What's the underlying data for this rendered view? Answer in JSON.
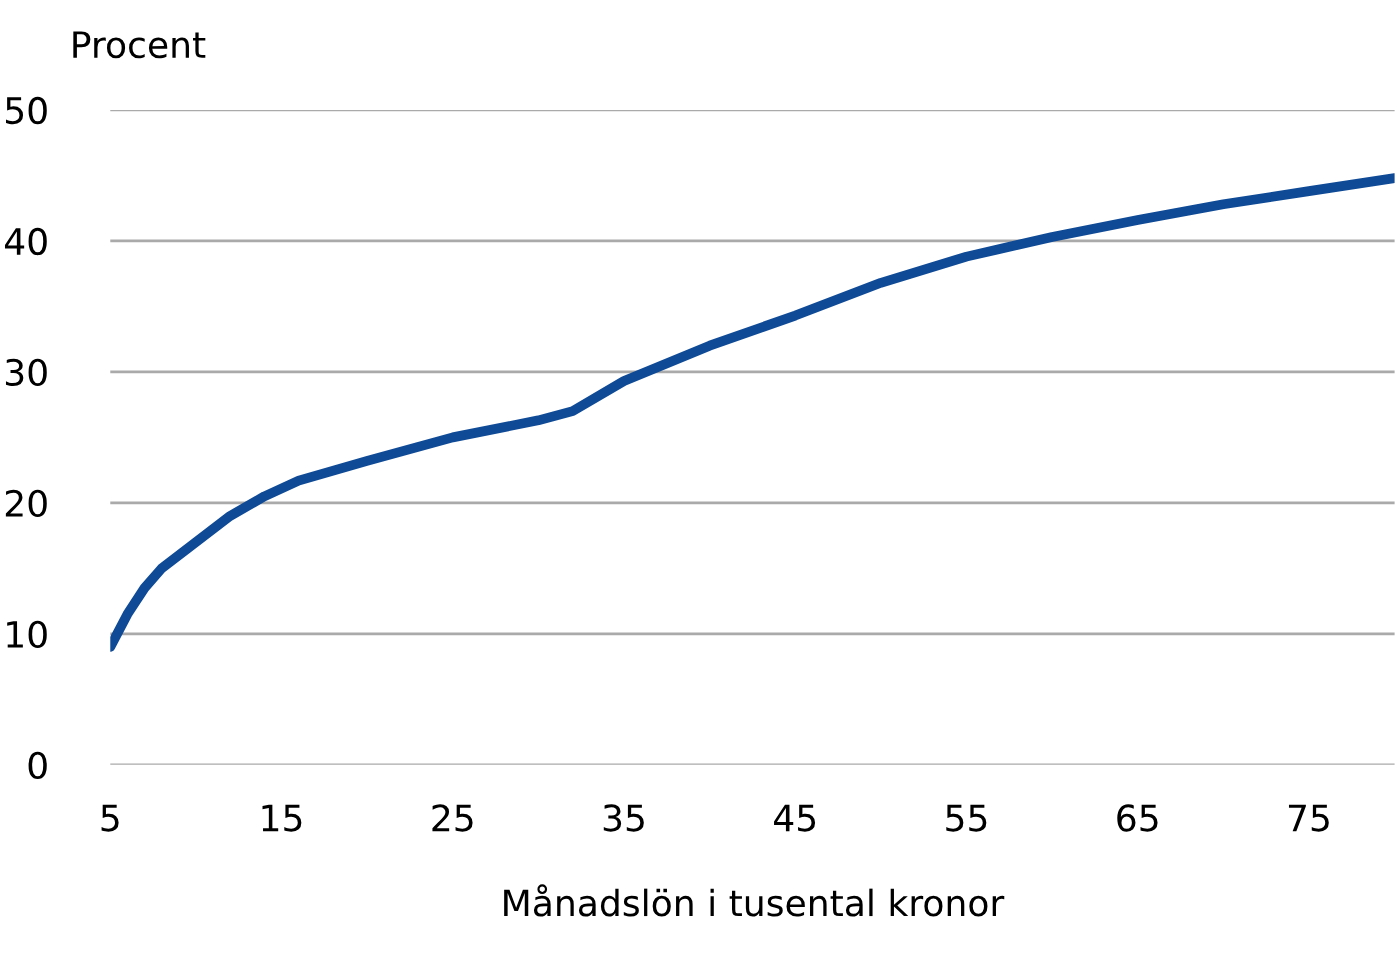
{
  "chart_data": {
    "type": "line",
    "xlabel": "Månadslön i tusental kronor",
    "ylabel": "Procent",
    "x": [
      5,
      6,
      7,
      8,
      10,
      12,
      14,
      16,
      20,
      25,
      30,
      32,
      35,
      40,
      45,
      50,
      55,
      60,
      65,
      70,
      75,
      80
    ],
    "series": [
      {
        "color": "#0f4a96",
        "values": [
          9,
          11.5,
          13.5,
          15,
          17,
          19,
          20.5,
          21.7,
          23.2,
          25,
          26.3,
          27,
          29.3,
          32,
          34.3,
          36.8,
          38.8,
          40.3,
          41.6,
          42.8,
          43.8,
          44.8
        ]
      }
    ],
    "xlim": [
      5,
      80
    ],
    "ylim": [
      0,
      50
    ],
    "xticks": [
      5,
      15,
      25,
      35,
      45,
      55,
      65,
      75
    ],
    "yticks": [
      0,
      10,
      20,
      30,
      40,
      50
    ],
    "grid": "y",
    "legend": false,
    "marker": "none",
    "line_style": "solid"
  }
}
